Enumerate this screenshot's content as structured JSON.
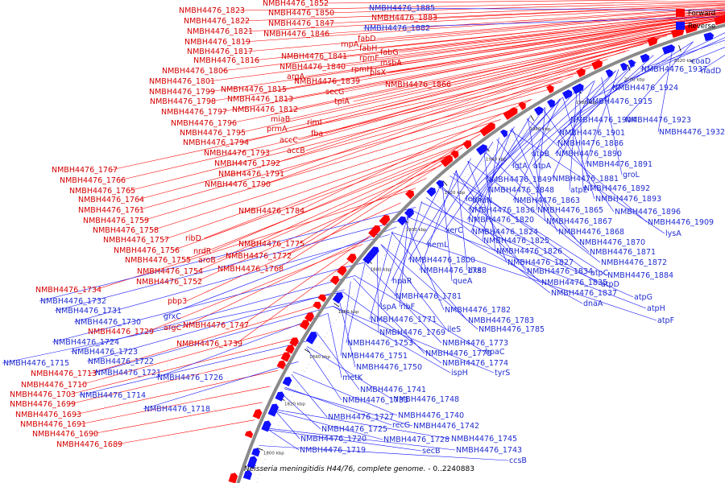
{
  "colors": {
    "forward": "#ff0000",
    "reverse": "#1010ff",
    "backbone": "#8a8a8a",
    "tick": "#000000"
  },
  "legend": {
    "forward": "Forward",
    "reverse": "Reverse"
  },
  "caption": {
    "organism": "Neisseria meningitidis H44/76, complete genome.",
    "range": " - 0..2240883"
  },
  "scale_labels": [
    "1800 kbp",
    "1820 kbp",
    "1840 kbp",
    "1860 kbp",
    "1880 kbp",
    "1900 kbp",
    "1920 kbp",
    "1940 kbp",
    "1960 kbp",
    "1980 kbp",
    "2000 kbp",
    "2020 kbp",
    "2040 kbp",
    "2060 kbp",
    "2080 kbp",
    "2100 kbp"
  ],
  "labels": {
    "forward": [
      "NMBH4476_1823",
      "NMBH4476_1852",
      "NMBH4476_1850",
      "NMBH4476_1847",
      "NMBH4476_1846",
      "NMBH4476_1822",
      "NMBH4476_1821",
      "NMBH4476_1819",
      "NMBH4476_1817",
      "NMBH4476_1816",
      "NMBH4476_1883",
      "fabD",
      "rnpA",
      "fabH",
      "fabG",
      "rpmF",
      "msbA",
      "NMBH4476_1841",
      "NMBH4476_1840",
      "rpmH",
      "plsX",
      "argA",
      "NMBH4476_1839",
      "NMBH4476_1866",
      "NMBH4476_1806",
      "NMBH4476_1801",
      "NMBH4476_1815",
      "NMBH4476_1813",
      "secG",
      "tpiA",
      "NMBH4476_1799",
      "NMBH4476_1798",
      "NMBH4476_1812",
      "NMBH4476_1797",
      "miaB",
      "NMBH4476_1796",
      "rimI",
      "prmA",
      "fba",
      "NMBH4476_1795",
      "accC",
      "NMBH4476_1794",
      "accB",
      "NMBH4476_1793",
      "NMBH4476_1792",
      "NMBH4476_1791",
      "NMBH4476_1790",
      "NMBH4476_1767",
      "NMBH4476_1766",
      "NMBH4476_1765",
      "NMBH4476_1764",
      "NMBH4476_1761",
      "NMBH4476_1759",
      "NMBH4476_1758",
      "NMBH4476_1784",
      "ribD",
      "NMBH4476_1757",
      "NMBH4476_1775",
      "nrdR",
      "NMBH4476_1756",
      "NMBH4476_1772",
      "aroB",
      "NMBH4476_1755",
      "NMBH4476_1768",
      "NMBH4476_1754",
      "NMBH4476_1752",
      "NMBH4476_1734",
      "pbp3",
      "argC",
      "NMBH4476_1747",
      "NMBH4476_1729",
      "NMBH4476_1739",
      "NMBH4476_1713",
      "NMBH4476_1710",
      "NMBH4476_1703",
      "NMBH4476_1699",
      "NMBH4476_1693",
      "NMBH4476_1691",
      "NMBH4476_1690",
      "NMBH4476_1689"
    ],
    "reverse": [
      "NMBH4476_1885",
      "NMBH4476_1882",
      "coaD",
      "nadD",
      "NMBH4476_1937",
      "NMBH4476_1924",
      "NMBH4476_1915",
      "NMBH4476_1904",
      "NMBH4476_1923",
      "NMBH4476_1901",
      "NMBH4476_1932",
      "NMBH4476_1886",
      "atpB",
      "NMBH4476_1890",
      "lgtA",
      "atpA",
      "NMBH4476_1891",
      "groL",
      "NMBH4476_1849",
      "NMBH4476_1881",
      "NMBH4476_1848",
      "atpE",
      "NMBH4476_1892",
      "leuS",
      "dnaN",
      "NMBH4476_1863",
      "NMBH4476_1893",
      "NMBH4476_1836",
      "NMBH4476_1865",
      "NMBH4476_1896",
      "xerC",
      "NMBH4476_1820",
      "NMBH4476_1867",
      "NMBH4476_1909",
      "NMBH4476_1824",
      "NMBH4476_1868",
      "lysA",
      "hemL",
      "NMBH4476_1825",
      "NMBH4476_1870",
      "NMBH4476_1826",
      "NMBH4476_1871",
      "NMBH4476_1800",
      "NMBH4476_1827",
      "NMBH4476_1872",
      "NMBH4476_1788",
      "dxs",
      "NMBH4476_1834",
      "atpC",
      "NMBH4476_1884",
      "hpaR",
      "queA",
      "NMBH4476_1835",
      "atpD",
      "NMBH4476_1837",
      "atpG",
      "NMBH4476_1781",
      "dnaA",
      "atpH",
      "NMBH4476_1732",
      "lspA",
      "ribF",
      "NMBH4476_1782",
      "atpF",
      "NMBH4476_1731",
      "NMBH4476_1783",
      "NMBH4476_1730",
      "NMBH4476_1771",
      "ileS",
      "NMBH4476_1785",
      "grxC",
      "NMBH4476_1769",
      "NMBH4476_1753",
      "NMBH4476_1773",
      "NMBH4476_1724",
      "NMBH4476_1770",
      "hpaC",
      "NMBH4476_1723",
      "NMBH4476_1751",
      "NMBH4476_1774",
      "NMBH4476_1722",
      "NMBH4476_1750",
      "ispH",
      "tyrS",
      "NMBH4476_1721",
      "NMBH4476_1715",
      "NMBH4476_1726",
      "metK",
      "NMBH4476_1741",
      "NMBH4476_1714",
      "NMBH4476_1733",
      "NMBH4476_1748",
      "NMBH4476_1718",
      "NMBH4476_1740",
      "NMBH4476_1727",
      "recG",
      "NMBH4476_1742",
      "NMBH4476_1725",
      "NMBH4476_1720",
      "NMBH4476_1728",
      "NMBH4476_1745",
      "NMBH4476_1719",
      "secB",
      "NMBH4476_1743",
      "ccsB"
    ]
  }
}
